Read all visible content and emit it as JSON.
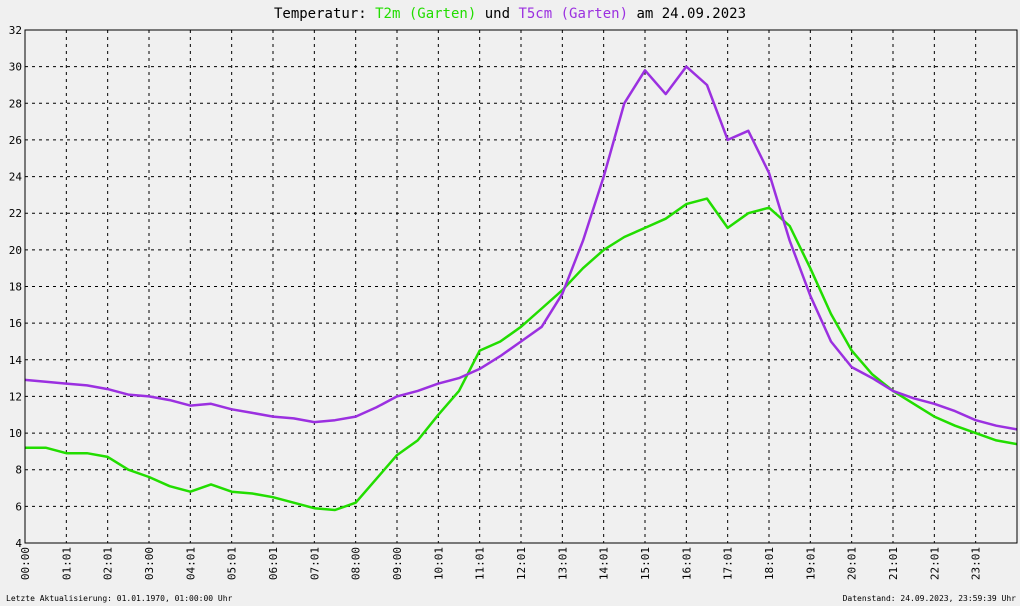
{
  "title": {
    "prefix": "Temperatur: ",
    "series1": "T2m (Garten)",
    "middle": " und ",
    "series2": "T5cm (Garten)",
    "suffix": " am 24.09.2023"
  },
  "footer": {
    "left": "Letzte Aktualisierung: 01.01.1970, 01:00:00 Uhr",
    "right": "Datenstand: 24.09.2023, 23:59:39 Uhr"
  },
  "colors": {
    "background": "#f0f0f0",
    "t2m": "#22dd00",
    "t5cm": "#9b30e0",
    "grid": "#000000"
  },
  "chart_data": {
    "type": "line",
    "title": "Temperatur: T2m (Garten) und T5cm (Garten) am 24.09.2023",
    "xlabel": "",
    "ylabel": "",
    "xlim": [
      0,
      24
    ],
    "ylim": [
      4,
      32
    ],
    "grid": true,
    "x_tick_labels": [
      "00:00",
      "01:01",
      "02:01",
      "03:00",
      "04:01",
      "05:01",
      "06:01",
      "07:01",
      "08:00",
      "09:00",
      "10:01",
      "11:01",
      "12:01",
      "13:01",
      "14:01",
      "15:01",
      "16:01",
      "17:01",
      "18:01",
      "19:01",
      "20:01",
      "21:01",
      "22:01",
      "23:01"
    ],
    "y_ticks": [
      4,
      6,
      8,
      10,
      12,
      14,
      16,
      18,
      20,
      22,
      24,
      26,
      28,
      30,
      32
    ],
    "series": [
      {
        "name": "T2m (Garten)",
        "color": "#22dd00",
        "x": [
          0,
          0.5,
          1,
          1.5,
          2,
          2.5,
          3,
          3.5,
          4,
          4.5,
          5,
          5.5,
          6,
          6.5,
          7,
          7.5,
          8,
          8.5,
          9,
          9.5,
          10,
          10.5,
          11,
          11.5,
          12,
          12.5,
          13,
          13.5,
          14,
          14.5,
          15,
          15.5,
          16,
          16.5,
          17,
          17.5,
          18,
          18.5,
          19,
          19.5,
          20,
          20.5,
          21,
          21.5,
          22,
          22.5,
          23,
          23.5,
          24
        ],
        "y": [
          9.2,
          9.2,
          8.9,
          8.9,
          8.7,
          8.0,
          7.6,
          7.1,
          6.8,
          7.2,
          6.8,
          6.7,
          6.5,
          6.2,
          5.9,
          5.8,
          6.2,
          7.5,
          8.8,
          9.6,
          11.0,
          12.3,
          14.5,
          15.0,
          15.8,
          16.8,
          17.8,
          19.0,
          20.0,
          20.7,
          21.2,
          21.7,
          22.5,
          22.8,
          21.2,
          22.0,
          22.3,
          21.3,
          19.0,
          16.5,
          14.5,
          13.2,
          12.3,
          11.6,
          10.9,
          10.4,
          10.0,
          9.6,
          9.4
        ]
      },
      {
        "name": "T5cm (Garten)",
        "color": "#9b30e0",
        "x": [
          0,
          0.5,
          1,
          1.5,
          2,
          2.5,
          3,
          3.5,
          4,
          4.5,
          5,
          5.5,
          6,
          6.5,
          7,
          7.5,
          8,
          8.5,
          9,
          9.5,
          10,
          10.5,
          11,
          11.5,
          12,
          12.5,
          13,
          13.5,
          14,
          14.5,
          15,
          15.5,
          16,
          16.5,
          17,
          17.5,
          18,
          18.5,
          19,
          19.5,
          20,
          20.5,
          21,
          21.5,
          22,
          22.5,
          23,
          23.5,
          24
        ],
        "y": [
          12.9,
          12.8,
          12.7,
          12.6,
          12.4,
          12.1,
          12.0,
          11.8,
          11.5,
          11.6,
          11.3,
          11.1,
          10.9,
          10.8,
          10.6,
          10.7,
          10.9,
          11.4,
          12.0,
          12.3,
          12.7,
          13.0,
          13.5,
          14.2,
          15.0,
          15.8,
          17.6,
          20.5,
          24.0,
          28.0,
          29.8,
          28.5,
          30.0,
          29.0,
          26.0,
          26.5,
          24.2,
          20.5,
          17.5,
          15.0,
          13.6,
          13.0,
          12.3,
          11.9,
          11.6,
          11.2,
          10.7,
          10.4,
          10.2
        ]
      }
    ]
  }
}
